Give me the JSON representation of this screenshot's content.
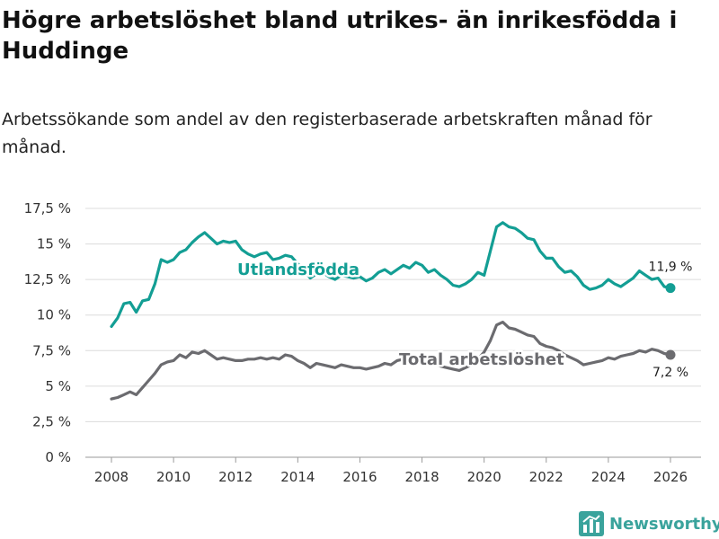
{
  "title": "Högre arbetslöshet bland utrikes- än inrikesfödda i Huddinge",
  "subtitle": "Arbetssökande som andel av den registerbaserade arbetskraften månad för månad.",
  "brand": {
    "name": "Newsworthy",
    "color": "#3aa39c"
  },
  "chart_data": {
    "type": "line",
    "title": "Högre arbetslöshet bland utrikes- än inrikesfödda i Huddinge",
    "xlabel": "",
    "ylabel": "",
    "xlim": [
      2007.5,
      2026.5
    ],
    "ylim": [
      0,
      17.5
    ],
    "y_ticks": [
      0,
      2.5,
      5,
      7.5,
      10,
      12.5,
      15,
      17.5
    ],
    "y_tick_labels": [
      "0 %",
      "2,5 %",
      "5 %",
      "7,5 %",
      "10 %",
      "12,5 %",
      "15 %",
      "17,5 %"
    ],
    "x_ticks": [
      2008,
      2010,
      2012,
      2014,
      2016,
      2018,
      2020,
      2022,
      2024,
      2026
    ],
    "x_tick_labels": [
      "2008",
      "2010",
      "2012",
      "2014",
      "2016",
      "2018",
      "2020",
      "2022",
      "2024",
      "2026"
    ],
    "grid": "horizontal",
    "series": [
      {
        "name": "Utlandsfödda",
        "color": "#139e94",
        "end_label": "11,9 %",
        "points": [
          [
            2008.0,
            9.2
          ],
          [
            2008.2,
            9.8
          ],
          [
            2008.4,
            10.8
          ],
          [
            2008.6,
            10.9
          ],
          [
            2008.8,
            10.2
          ],
          [
            2009.0,
            11.0
          ],
          [
            2009.2,
            11.1
          ],
          [
            2009.4,
            12.2
          ],
          [
            2009.6,
            13.9
          ],
          [
            2009.8,
            13.7
          ],
          [
            2010.0,
            13.9
          ],
          [
            2010.2,
            14.4
          ],
          [
            2010.4,
            14.6
          ],
          [
            2010.6,
            15.1
          ],
          [
            2010.8,
            15.5
          ],
          [
            2011.0,
            15.8
          ],
          [
            2011.2,
            15.4
          ],
          [
            2011.4,
            15.0
          ],
          [
            2011.6,
            15.2
          ],
          [
            2011.8,
            15.1
          ],
          [
            2012.0,
            15.2
          ],
          [
            2012.2,
            14.6
          ],
          [
            2012.4,
            14.3
          ],
          [
            2012.6,
            14.1
          ],
          [
            2012.8,
            14.3
          ],
          [
            2013.0,
            14.4
          ],
          [
            2013.2,
            13.9
          ],
          [
            2013.4,
            14.0
          ],
          [
            2013.6,
            14.2
          ],
          [
            2013.8,
            14.1
          ],
          [
            2014.0,
            13.6
          ],
          [
            2014.2,
            13.2
          ],
          [
            2014.4,
            12.6
          ],
          [
            2014.6,
            12.9
          ],
          [
            2014.8,
            13.0
          ],
          [
            2015.0,
            12.7
          ],
          [
            2015.2,
            12.5
          ],
          [
            2015.4,
            12.8
          ],
          [
            2015.6,
            12.7
          ],
          [
            2015.8,
            12.6
          ],
          [
            2016.0,
            12.7
          ],
          [
            2016.2,
            12.4
          ],
          [
            2016.4,
            12.6
          ],
          [
            2016.6,
            13.0
          ],
          [
            2016.8,
            13.2
          ],
          [
            2017.0,
            12.9
          ],
          [
            2017.2,
            13.2
          ],
          [
            2017.4,
            13.5
          ],
          [
            2017.6,
            13.3
          ],
          [
            2017.8,
            13.7
          ],
          [
            2018.0,
            13.5
          ],
          [
            2018.2,
            13.0
          ],
          [
            2018.4,
            13.2
          ],
          [
            2018.6,
            12.8
          ],
          [
            2018.8,
            12.5
          ],
          [
            2019.0,
            12.1
          ],
          [
            2019.2,
            12.0
          ],
          [
            2019.4,
            12.2
          ],
          [
            2019.6,
            12.5
          ],
          [
            2019.8,
            13.0
          ],
          [
            2020.0,
            12.8
          ],
          [
            2020.2,
            14.5
          ],
          [
            2020.4,
            16.2
          ],
          [
            2020.6,
            16.5
          ],
          [
            2020.8,
            16.2
          ],
          [
            2021.0,
            16.1
          ],
          [
            2021.2,
            15.8
          ],
          [
            2021.4,
            15.4
          ],
          [
            2021.6,
            15.3
          ],
          [
            2021.8,
            14.5
          ],
          [
            2022.0,
            14.0
          ],
          [
            2022.2,
            14.0
          ],
          [
            2022.4,
            13.4
          ],
          [
            2022.6,
            13.0
          ],
          [
            2022.8,
            13.1
          ],
          [
            2023.0,
            12.7
          ],
          [
            2023.2,
            12.1
          ],
          [
            2023.4,
            11.8
          ],
          [
            2023.6,
            11.9
          ],
          [
            2023.8,
            12.1
          ],
          [
            2024.0,
            12.5
          ],
          [
            2024.2,
            12.2
          ],
          [
            2024.4,
            12.0
          ],
          [
            2024.6,
            12.3
          ],
          [
            2024.8,
            12.6
          ],
          [
            2025.0,
            13.1
          ],
          [
            2025.2,
            12.8
          ],
          [
            2025.4,
            12.5
          ],
          [
            2025.6,
            12.6
          ],
          [
            2025.8,
            12.0
          ],
          [
            2026.0,
            11.9
          ]
        ]
      },
      {
        "name": "Total arbetslöshet",
        "color": "#6b6b6f",
        "end_label": "7,2 %",
        "points": [
          [
            2008.0,
            4.1
          ],
          [
            2008.2,
            4.2
          ],
          [
            2008.4,
            4.4
          ],
          [
            2008.6,
            4.6
          ],
          [
            2008.8,
            4.4
          ],
          [
            2009.0,
            4.9
          ],
          [
            2009.2,
            5.4
          ],
          [
            2009.4,
            5.9
          ],
          [
            2009.6,
            6.5
          ],
          [
            2009.8,
            6.7
          ],
          [
            2010.0,
            6.8
          ],
          [
            2010.2,
            7.2
          ],
          [
            2010.4,
            7.0
          ],
          [
            2010.6,
            7.4
          ],
          [
            2010.8,
            7.3
          ],
          [
            2011.0,
            7.5
          ],
          [
            2011.2,
            7.2
          ],
          [
            2011.4,
            6.9
          ],
          [
            2011.6,
            7.0
          ],
          [
            2011.8,
            6.9
          ],
          [
            2012.0,
            6.8
          ],
          [
            2012.2,
            6.8
          ],
          [
            2012.4,
            6.9
          ],
          [
            2012.6,
            6.9
          ],
          [
            2012.8,
            7.0
          ],
          [
            2013.0,
            6.9
          ],
          [
            2013.2,
            7.0
          ],
          [
            2013.4,
            6.9
          ],
          [
            2013.6,
            7.2
          ],
          [
            2013.8,
            7.1
          ],
          [
            2014.0,
            6.8
          ],
          [
            2014.2,
            6.6
          ],
          [
            2014.4,
            6.3
          ],
          [
            2014.6,
            6.6
          ],
          [
            2014.8,
            6.5
          ],
          [
            2015.0,
            6.4
          ],
          [
            2015.2,
            6.3
          ],
          [
            2015.4,
            6.5
          ],
          [
            2015.6,
            6.4
          ],
          [
            2015.8,
            6.3
          ],
          [
            2016.0,
            6.3
          ],
          [
            2016.2,
            6.2
          ],
          [
            2016.4,
            6.3
          ],
          [
            2016.6,
            6.4
          ],
          [
            2016.8,
            6.6
          ],
          [
            2017.0,
            6.5
          ],
          [
            2017.2,
            6.8
          ],
          [
            2017.4,
            6.9
          ],
          [
            2017.6,
            6.7
          ],
          [
            2017.8,
            6.8
          ],
          [
            2018.0,
            6.6
          ],
          [
            2018.2,
            6.5
          ],
          [
            2018.4,
            6.6
          ],
          [
            2018.6,
            6.4
          ],
          [
            2018.8,
            6.3
          ],
          [
            2019.0,
            6.2
          ],
          [
            2019.2,
            6.1
          ],
          [
            2019.4,
            6.3
          ],
          [
            2019.6,
            6.5
          ],
          [
            2019.8,
            6.9
          ],
          [
            2020.0,
            7.4
          ],
          [
            2020.2,
            8.2
          ],
          [
            2020.4,
            9.3
          ],
          [
            2020.6,
            9.5
          ],
          [
            2020.8,
            9.1
          ],
          [
            2021.0,
            9.0
          ],
          [
            2021.2,
            8.8
          ],
          [
            2021.4,
            8.6
          ],
          [
            2021.6,
            8.5
          ],
          [
            2021.8,
            8.0
          ],
          [
            2022.0,
            7.8
          ],
          [
            2022.2,
            7.7
          ],
          [
            2022.4,
            7.5
          ],
          [
            2022.6,
            7.2
          ],
          [
            2022.8,
            7.0
          ],
          [
            2023.0,
            6.8
          ],
          [
            2023.2,
            6.5
          ],
          [
            2023.4,
            6.6
          ],
          [
            2023.6,
            6.7
          ],
          [
            2023.8,
            6.8
          ],
          [
            2024.0,
            7.0
          ],
          [
            2024.2,
            6.9
          ],
          [
            2024.4,
            7.1
          ],
          [
            2024.6,
            7.2
          ],
          [
            2024.8,
            7.3
          ],
          [
            2025.0,
            7.5
          ],
          [
            2025.2,
            7.4
          ],
          [
            2025.4,
            7.6
          ],
          [
            2025.6,
            7.5
          ],
          [
            2025.8,
            7.3
          ],
          [
            2026.0,
            7.2
          ]
        ]
      }
    ],
    "annotations": [
      {
        "text": "Utlandsfödda",
        "series": "Utlandsfödda"
      },
      {
        "text": "Total arbetslöshet",
        "series": "Total arbetslöshet"
      }
    ]
  }
}
